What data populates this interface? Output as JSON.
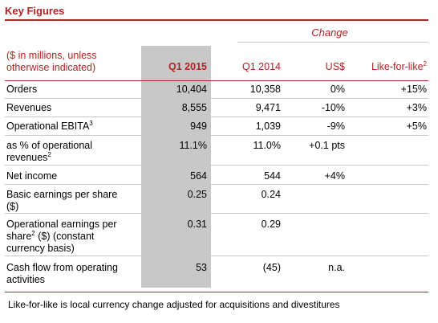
{
  "title": "Key Figures",
  "colors": {
    "accent": "#b22222",
    "shade": "#c8c8c8",
    "rule": "#c8c8c8"
  },
  "header": {
    "change_group": "Change",
    "units": "($ in millions, unless otherwise indicated)",
    "q1_2015": "Q1 2015",
    "q1_2014": "Q1 2014",
    "usd": "US$",
    "lfl": "Like-for-like",
    "lfl_sup": "2"
  },
  "rows": [
    {
      "label": "Orders",
      "sup": "",
      "label2": "",
      "q15": "10,404",
      "q14": "10,358",
      "usd": "0%",
      "lfl": "+15%"
    },
    {
      "label": "Revenues",
      "sup": "",
      "label2": "",
      "q15": "8,555",
      "q14": "9,471",
      "usd": "-10%",
      "lfl": "+3%"
    },
    {
      "label": "Operational EBITA",
      "sup": "3",
      "label2": "",
      "q15": "949",
      "q14": "1,039",
      "usd": "-9%",
      "lfl": "+5%"
    },
    {
      "label": "as % of operational revenues",
      "sup": "2",
      "label2": "",
      "q15": "11.1%",
      "q14": "11.0%",
      "usd": "+0.1 pts",
      "lfl": ""
    },
    {
      "label": "Net income",
      "sup": "",
      "label2": "",
      "q15": "564",
      "q14": "544",
      "usd": "+4%",
      "lfl": ""
    },
    {
      "label": "Basic earnings per share ($)",
      "sup": "",
      "label2": "",
      "q15": "0.25",
      "q14": "0.24",
      "usd": "",
      "lfl": ""
    },
    {
      "label": "Operational earnings per share",
      "sup": "2",
      "label2": " ($) (constant currency basis)",
      "q15": "0.31",
      "q14": "0.29",
      "usd": "",
      "lfl": ""
    },
    {
      "label": "Cash flow from operating activities",
      "sup": "",
      "label2": "",
      "q15": "53",
      "q14": "(45)",
      "usd": "n.a.",
      "lfl": ""
    }
  ],
  "footnote": "Like-for-like is local currency change adjusted for acquisitions and divestitures"
}
